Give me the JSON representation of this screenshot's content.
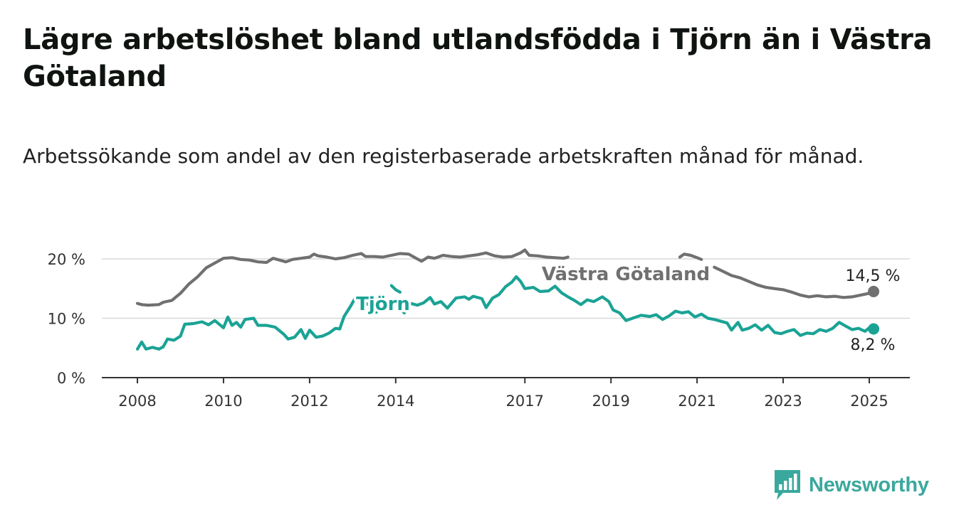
{
  "title": "Lägre arbetslöshet bland utlandsfödda i Tjörn än i Västra Götaland",
  "subtitle": "Arbetssökande som andel av den registerbaserade arbetskraften månad för månad.",
  "brand": {
    "name": "Newsworthy"
  },
  "chart_data": {
    "type": "line",
    "title": "Lägre arbetslöshet bland utlandsfödda i Tjörn än i Västra Götaland",
    "subtitle": "Arbetssökande som andel av den registerbaserade arbetskraften månad för månad.",
    "xlabel": "",
    "ylabel": "",
    "xlim": [
      2007.7,
      2025.9
    ],
    "ylim": [
      0,
      20
    ],
    "y_ticks": [
      0,
      10,
      20
    ],
    "y_tick_labels": [
      "0 %",
      "10 %",
      "20 %"
    ],
    "x_ticks": [
      2008,
      2010,
      2012,
      2014,
      2017,
      2019,
      2021,
      2023,
      2025
    ],
    "x_tick_labels": [
      "2008",
      "2010",
      "2012",
      "2014",
      "2017",
      "2019",
      "2021",
      "2023",
      "2025"
    ],
    "grid": "horizontal",
    "legend": "direct labels",
    "series": [
      {
        "name": "Västra Götaland",
        "color": "#707070",
        "end_label": "14,5 %",
        "points": [
          [
            2008.0,
            12.5
          ],
          [
            2008.1,
            12.3
          ],
          [
            2008.25,
            12.2
          ],
          [
            2008.5,
            12.3
          ],
          [
            2008.6,
            12.7
          ],
          [
            2008.8,
            13.0
          ],
          [
            2009.0,
            14.2
          ],
          [
            2009.2,
            15.8
          ],
          [
            2009.4,
            17.0
          ],
          [
            2009.6,
            18.5
          ],
          [
            2009.8,
            19.3
          ],
          [
            2010.0,
            20.1
          ],
          [
            2010.2,
            20.2
          ],
          [
            2010.4,
            19.9
          ],
          [
            2010.6,
            19.8
          ],
          [
            2010.8,
            19.5
          ],
          [
            2011.0,
            19.4
          ],
          [
            2011.15,
            20.1
          ],
          [
            2011.3,
            19.8
          ],
          [
            2011.45,
            19.5
          ],
          [
            2011.6,
            19.9
          ],
          [
            2011.8,
            20.1
          ],
          [
            2012.0,
            20.3
          ],
          [
            2012.1,
            20.8
          ],
          [
            2012.2,
            20.5
          ],
          [
            2012.4,
            20.3
          ],
          [
            2012.6,
            20.0
          ],
          [
            2012.8,
            20.2
          ],
          [
            2013.0,
            20.6
          ],
          [
            2013.2,
            20.9
          ],
          [
            2013.3,
            20.4
          ],
          [
            2013.5,
            20.4
          ],
          [
            2013.7,
            20.3
          ],
          [
            2013.9,
            20.6
          ],
          [
            2014.1,
            20.9
          ],
          [
            2014.3,
            20.8
          ],
          [
            2014.45,
            20.2
          ],
          [
            2014.6,
            19.6
          ],
          [
            2014.75,
            20.3
          ],
          [
            2014.9,
            20.1
          ],
          [
            2015.1,
            20.6
          ],
          [
            2015.3,
            20.4
          ],
          [
            2015.5,
            20.3
          ],
          [
            2015.7,
            20.5
          ],
          [
            2015.9,
            20.7
          ],
          [
            2016.1,
            21.0
          ],
          [
            2016.3,
            20.5
          ],
          [
            2016.5,
            20.3
          ],
          [
            2016.7,
            20.4
          ],
          [
            2016.9,
            21.0
          ],
          [
            2017.0,
            21.5
          ],
          [
            2017.1,
            20.6
          ],
          [
            2017.3,
            20.5
          ],
          [
            2017.5,
            20.3
          ],
          [
            2017.7,
            20.2
          ],
          [
            2017.9,
            20.1
          ],
          [
            2018.0,
            20.3
          ]
        ],
        "points_b": [
          [
            2020.6,
            20.3
          ],
          [
            2020.7,
            20.8
          ],
          [
            2020.85,
            20.6
          ],
          [
            2021.0,
            20.2
          ],
          [
            2021.1,
            19.9
          ]
        ],
        "points_c": [
          [
            2021.4,
            18.6
          ],
          [
            2021.6,
            17.9
          ],
          [
            2021.8,
            17.2
          ],
          [
            2022.0,
            16.8
          ],
          [
            2022.2,
            16.2
          ],
          [
            2022.4,
            15.6
          ],
          [
            2022.6,
            15.2
          ],
          [
            2022.8,
            15.0
          ],
          [
            2023.0,
            14.8
          ],
          [
            2023.2,
            14.4
          ],
          [
            2023.4,
            13.9
          ],
          [
            2023.6,
            13.6
          ],
          [
            2023.8,
            13.8
          ],
          [
            2024.0,
            13.6
          ],
          [
            2024.2,
            13.7
          ],
          [
            2024.4,
            13.5
          ],
          [
            2024.6,
            13.6
          ],
          [
            2024.8,
            13.9
          ],
          [
            2025.0,
            14.2
          ],
          [
            2025.1,
            14.5
          ]
        ]
      },
      {
        "name": "Tjörn",
        "color": "#1aa395",
        "end_label": "8,2 %",
        "points": [
          [
            2008.0,
            4.8
          ],
          [
            2008.1,
            6.0
          ],
          [
            2008.2,
            4.8
          ],
          [
            2008.35,
            5.1
          ],
          [
            2008.5,
            4.8
          ],
          [
            2008.6,
            5.2
          ],
          [
            2008.7,
            6.5
          ],
          [
            2008.85,
            6.3
          ],
          [
            2009.0,
            7.0
          ],
          [
            2009.1,
            9.0
          ],
          [
            2009.3,
            9.1
          ],
          [
            2009.5,
            9.4
          ],
          [
            2009.65,
            8.9
          ],
          [
            2009.8,
            9.6
          ],
          [
            2010.0,
            8.4
          ],
          [
            2010.1,
            10.2
          ],
          [
            2010.2,
            8.8
          ],
          [
            2010.3,
            9.3
          ],
          [
            2010.4,
            8.5
          ],
          [
            2010.5,
            9.8
          ],
          [
            2010.7,
            10.0
          ],
          [
            2010.8,
            8.8
          ],
          [
            2011.0,
            8.8
          ],
          [
            2011.2,
            8.5
          ],
          [
            2011.4,
            7.3
          ],
          [
            2011.5,
            6.5
          ],
          [
            2011.65,
            6.8
          ],
          [
            2011.8,
            8.1
          ],
          [
            2011.9,
            6.6
          ],
          [
            2012.0,
            8.0
          ],
          [
            2012.15,
            6.8
          ],
          [
            2012.3,
            7.0
          ],
          [
            2012.45,
            7.5
          ],
          [
            2012.6,
            8.3
          ],
          [
            2012.7,
            8.2
          ],
          [
            2012.8,
            10.3
          ],
          [
            2012.95,
            12.0
          ],
          [
            2013.05,
            13.3
          ],
          [
            2013.2,
            12.8
          ],
          [
            2013.4,
            12.2
          ],
          [
            2013.55,
            11.0
          ]
        ],
        "points_b": [
          [
            2013.9,
            15.5
          ],
          [
            2014.0,
            14.8
          ],
          [
            2014.1,
            14.4
          ]
        ],
        "points_c": [
          [
            2014.1,
            11.6
          ],
          [
            2014.2,
            10.9
          ],
          [
            2014.35,
            12.5
          ],
          [
            2014.5,
            12.2
          ],
          [
            2014.65,
            12.6
          ],
          [
            2014.8,
            13.5
          ],
          [
            2014.9,
            12.4
          ],
          [
            2015.05,
            12.8
          ],
          [
            2015.2,
            11.7
          ],
          [
            2015.4,
            13.4
          ],
          [
            2015.6,
            13.6
          ],
          [
            2015.7,
            13.2
          ],
          [
            2015.8,
            13.7
          ],
          [
            2016.0,
            13.3
          ],
          [
            2016.1,
            11.8
          ],
          [
            2016.25,
            13.4
          ],
          [
            2016.4,
            14.0
          ],
          [
            2016.55,
            15.3
          ],
          [
            2016.7,
            16.1
          ],
          [
            2016.8,
            17.0
          ],
          [
            2016.9,
            16.2
          ],
          [
            2017.0,
            15.0
          ],
          [
            2017.2,
            15.2
          ],
          [
            2017.35,
            14.5
          ],
          [
            2017.55,
            14.6
          ],
          [
            2017.7,
            15.4
          ],
          [
            2017.85,
            14.3
          ],
          [
            2018.0,
            13.6
          ],
          [
            2018.15,
            13.0
          ],
          [
            2018.3,
            12.3
          ],
          [
            2018.45,
            13.1
          ],
          [
            2018.6,
            12.8
          ],
          [
            2018.8,
            13.6
          ],
          [
            2018.95,
            12.8
          ],
          [
            2019.05,
            11.4
          ],
          [
            2019.2,
            10.9
          ],
          [
            2019.35,
            9.6
          ],
          [
            2019.5,
            10.0
          ],
          [
            2019.7,
            10.5
          ],
          [
            2019.9,
            10.3
          ],
          [
            2020.05,
            10.6
          ],
          [
            2020.2,
            9.8
          ],
          [
            2020.35,
            10.4
          ],
          [
            2020.5,
            11.2
          ],
          [
            2020.65,
            10.9
          ],
          [
            2020.8,
            11.1
          ],
          [
            2020.95,
            10.2
          ],
          [
            2021.1,
            10.7
          ],
          [
            2021.25,
            10.0
          ],
          [
            2021.4,
            9.8
          ],
          [
            2021.55,
            9.5
          ],
          [
            2021.7,
            9.2
          ],
          [
            2021.8,
            8.0
          ],
          [
            2021.95,
            9.3
          ],
          [
            2022.05,
            8.0
          ],
          [
            2022.2,
            8.3
          ],
          [
            2022.35,
            8.9
          ],
          [
            2022.5,
            8.0
          ],
          [
            2022.65,
            8.8
          ],
          [
            2022.8,
            7.6
          ],
          [
            2022.95,
            7.4
          ],
          [
            2023.1,
            7.8
          ],
          [
            2023.25,
            8.1
          ],
          [
            2023.4,
            7.1
          ],
          [
            2023.55,
            7.5
          ],
          [
            2023.7,
            7.4
          ],
          [
            2023.85,
            8.1
          ],
          [
            2024.0,
            7.8
          ],
          [
            2024.15,
            8.3
          ],
          [
            2024.3,
            9.3
          ],
          [
            2024.45,
            8.7
          ],
          [
            2024.6,
            8.1
          ],
          [
            2024.75,
            8.3
          ],
          [
            2024.9,
            7.8
          ],
          [
            2025.0,
            8.4
          ],
          [
            2025.1,
            8.2
          ]
        ]
      }
    ]
  }
}
